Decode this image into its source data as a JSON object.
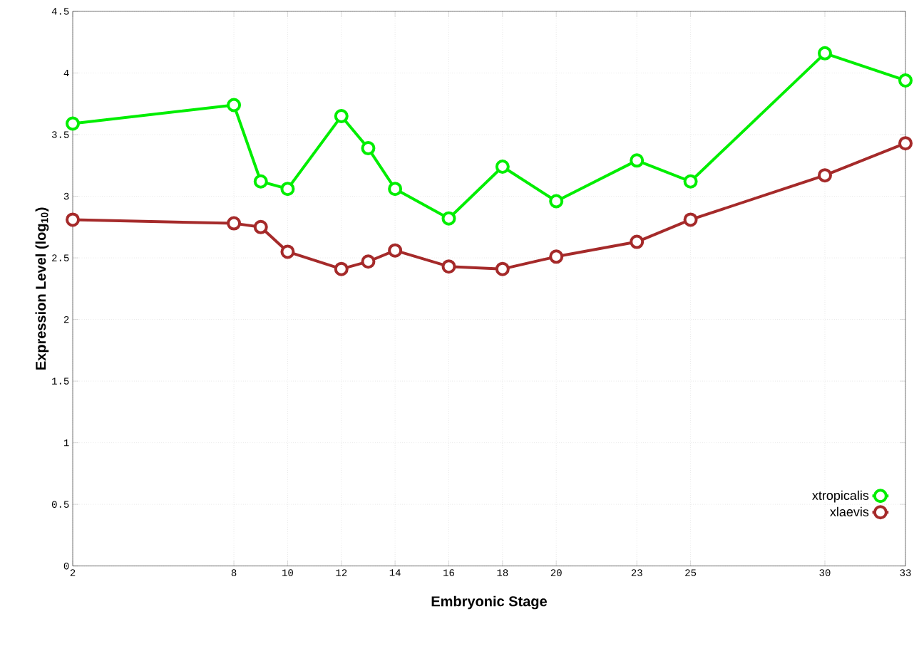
{
  "chart_data": {
    "type": "line",
    "xlabel": "Embryonic Stage",
    "ylabel": "Expression Level (log$_{10}$)",
    "x": [
      2,
      8,
      9,
      10,
      12,
      13,
      14,
      16,
      18,
      20,
      23,
      25,
      30,
      33
    ],
    "series": [
      {
        "name": "xtropicalis",
        "color": "#00ee00",
        "values": [
          3.59,
          3.74,
          3.12,
          3.06,
          3.65,
          3.39,
          3.06,
          2.82,
          3.24,
          2.96,
          3.29,
          3.12,
          4.16,
          3.94
        ]
      },
      {
        "name": "xlaevis",
        "color": "#a52a2a",
        "values": [
          2.81,
          2.78,
          2.75,
          2.55,
          2.41,
          2.47,
          2.56,
          2.43,
          2.41,
          2.51,
          2.63,
          2.81,
          3.17,
          3.43
        ]
      }
    ],
    "xlim": [
      2,
      33
    ],
    "ylim": [
      0,
      4.5
    ],
    "xticks": [
      2,
      8,
      10,
      12,
      14,
      16,
      18,
      20,
      23,
      25,
      30,
      33
    ],
    "yticks": [
      0,
      0.5,
      1,
      1.5,
      2,
      2.5,
      3,
      3.5,
      4,
      4.5
    ],
    "grid": true,
    "legend": "bottom right",
    "marker": "circle",
    "line_style": "solid"
  }
}
